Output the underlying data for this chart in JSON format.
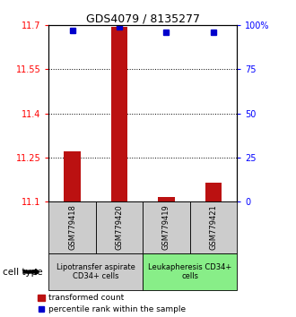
{
  "title": "GDS4079 / 8135277",
  "samples": [
    "GSM779418",
    "GSM779420",
    "GSM779419",
    "GSM779421"
  ],
  "bar_values": [
    11.27,
    11.695,
    11.115,
    11.165
  ],
  "bar_baseline": 11.1,
  "percentile_values": [
    97,
    99,
    96,
    96
  ],
  "ylim_left": [
    11.1,
    11.7
  ],
  "ylim_right": [
    0,
    100
  ],
  "yticks_left": [
    11.1,
    11.25,
    11.4,
    11.55,
    11.7
  ],
  "yticks_right": [
    0,
    25,
    50,
    75,
    100
  ],
  "ytick_labels_right": [
    "0",
    "25",
    "50",
    "75",
    "100%"
  ],
  "hlines": [
    11.25,
    11.4,
    11.55
  ],
  "bar_color": "#bb1111",
  "dot_color": "#0000cc",
  "group1_label": "Lipotransfer aspirate\nCD34+ cells",
  "group2_label": "Leukapheresis CD34+\ncells",
  "group1_color": "#cccccc",
  "group2_color": "#88ee88",
  "legend_bar_label": "transformed count",
  "legend_dot_label": "percentile rank within the sample",
  "cell_type_label": "cell type"
}
